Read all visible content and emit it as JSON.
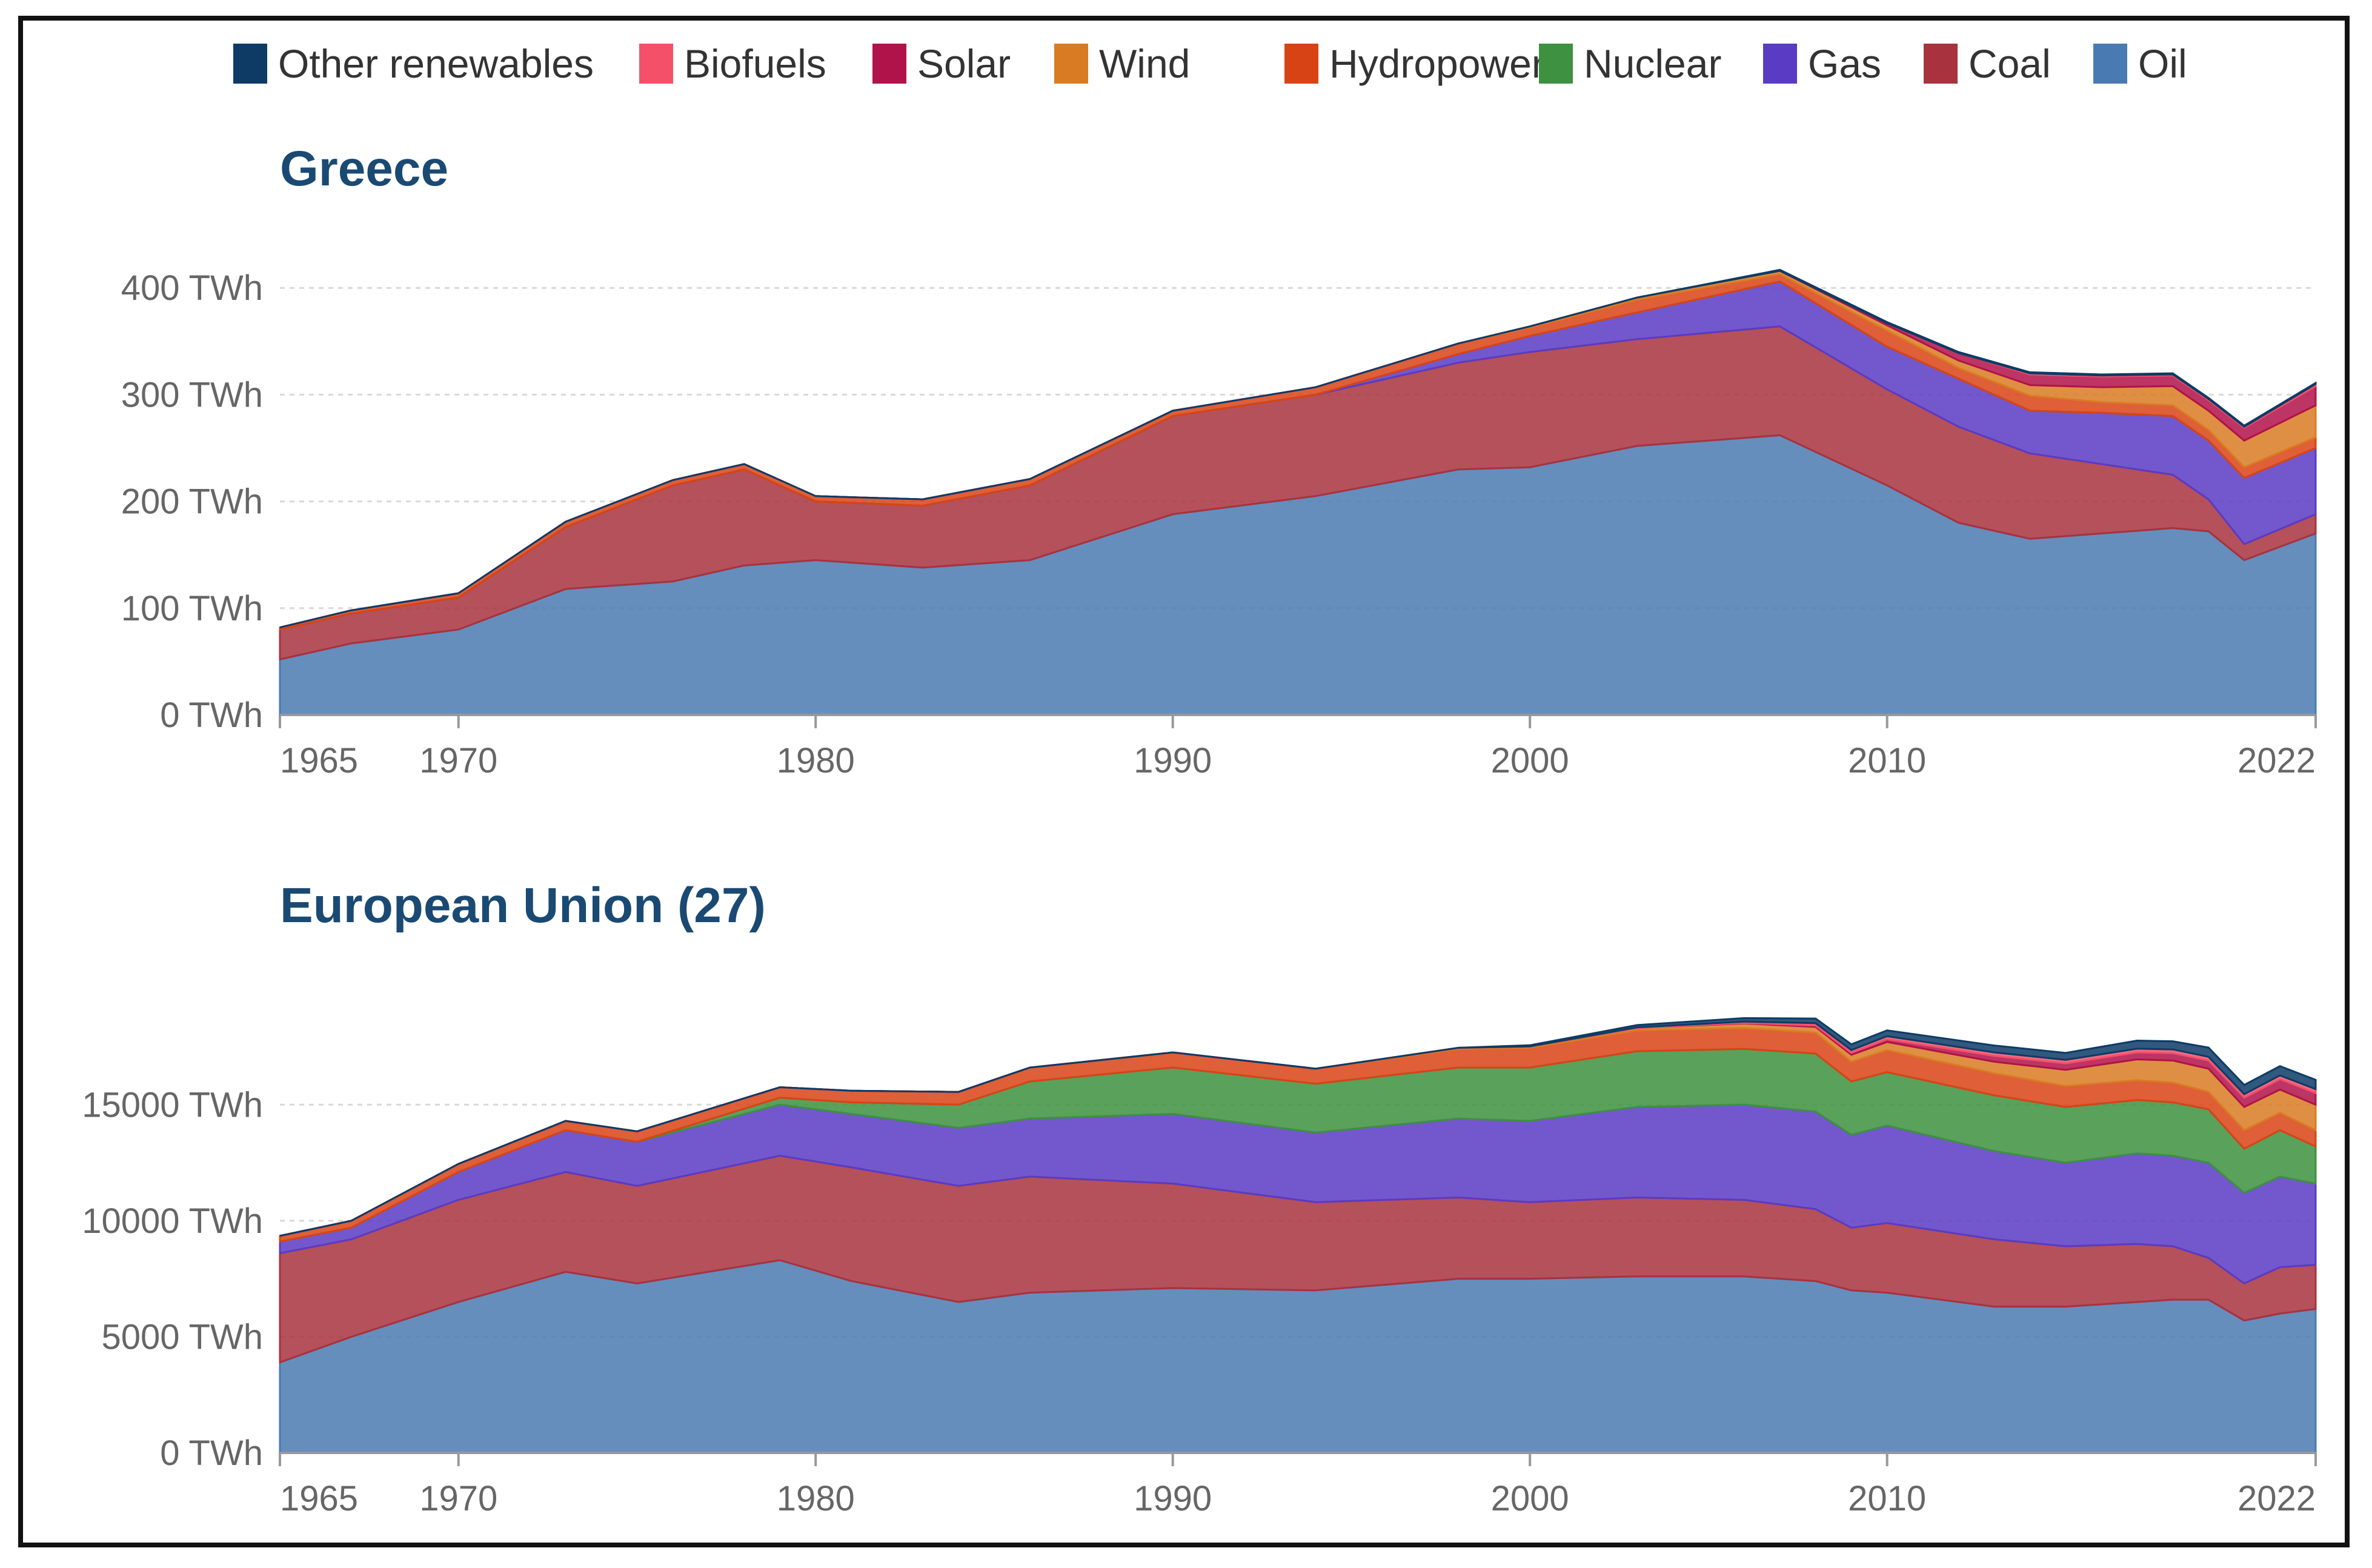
{
  "chart_data": [
    {
      "type": "area",
      "stacked": true,
      "title": "Greece",
      "ylabel": "",
      "xlabel": "",
      "ylim": [
        0,
        420
      ],
      "y_ticks": [
        "0 TWh",
        "100 TWh",
        "200 TWh",
        "300 TWh",
        "400 TWh"
      ],
      "y_tick_values": [
        0,
        100,
        200,
        300,
        400
      ],
      "x_ticks": [
        "1965",
        "1970",
        "1980",
        "1990",
        "2000",
        "2010",
        "2022"
      ],
      "x_tick_values": [
        1965,
        1970,
        1980,
        1990,
        2000,
        2010,
        2022
      ],
      "x": [
        1965,
        1967,
        1970,
        1973,
        1976,
        1978,
        1980,
        1983,
        1986,
        1990,
        1994,
        1998,
        2000,
        2003,
        2007,
        2010,
        2012,
        2014,
        2016,
        2018,
        2019,
        2020,
        2022
      ],
      "series": [
        {
          "name": "Oil",
          "values": [
            52,
            67,
            80,
            118,
            125,
            140,
            145,
            138,
            145,
            188,
            205,
            230,
            232,
            252,
            262,
            215,
            180,
            165,
            170,
            175,
            172,
            145,
            170
          ]
        },
        {
          "name": "Coal",
          "values": [
            28,
            28,
            30,
            58,
            90,
            90,
            55,
            58,
            70,
            92,
            95,
            100,
            108,
            100,
            102,
            90,
            90,
            80,
            65,
            50,
            30,
            15,
            18
          ]
        },
        {
          "name": "Gas",
          "values": [
            0,
            0,
            0,
            0,
            0,
            0,
            0,
            0,
            0,
            0,
            0,
            8,
            15,
            25,
            42,
            40,
            45,
            40,
            48,
            55,
            55,
            62,
            62
          ]
        },
        {
          "name": "Nuclear",
          "values": [
            0,
            0,
            0,
            0,
            0,
            0,
            0,
            0,
            0,
            0,
            0,
            0,
            0,
            0,
            0,
            0,
            0,
            0,
            0,
            0,
            0,
            0,
            0
          ]
        },
        {
          "name": "Hydropower",
          "values": [
            2,
            3,
            4,
            5,
            5,
            5,
            5,
            6,
            6,
            5,
            7,
            10,
            8,
            12,
            7,
            15,
            10,
            14,
            10,
            10,
            10,
            10,
            10
          ]
        },
        {
          "name": "Wind",
          "values": [
            0,
            0,
            0,
            0,
            0,
            0,
            0,
            0,
            0,
            0,
            0,
            0,
            1,
            2,
            3,
            5,
            7,
            10,
            14,
            18,
            18,
            25,
            30
          ]
        },
        {
          "name": "Solar",
          "values": [
            0,
            0,
            0,
            0,
            0,
            0,
            0,
            0,
            0,
            0,
            0,
            0,
            0,
            0,
            0,
            2,
            7,
            10,
            10,
            10,
            10,
            12,
            18
          ]
        },
        {
          "name": "Biofuels",
          "values": [
            0,
            0,
            0,
            0,
            0,
            0,
            0,
            0,
            0,
            0,
            0,
            0,
            0,
            0,
            0,
            0,
            0,
            1,
            1,
            1,
            1,
            1,
            2
          ]
        },
        {
          "name": "Other renewables",
          "values": [
            0,
            0,
            0,
            0,
            0,
            0,
            0,
            0,
            0,
            0,
            0,
            0,
            0,
            0,
            1,
            1,
            1,
            1,
            1,
            1,
            1,
            1,
            1
          ]
        }
      ]
    },
    {
      "type": "area",
      "stacked": true,
      "title": "European Union (27)",
      "ylabel": "",
      "xlabel": "",
      "ylim": [
        0,
        19000
      ],
      "y_ticks": [
        "0 TWh",
        "5000 TWh",
        "10000 TWh",
        "15000 TWh"
      ],
      "y_tick_values": [
        0,
        5000,
        10000,
        15000
      ],
      "x_ticks": [
        "1965",
        "1970",
        "1980",
        "1990",
        "2000",
        "2010",
        "2022"
      ],
      "x_tick_values": [
        1965,
        1970,
        1980,
        1990,
        2000,
        2010,
        2022
      ],
      "x": [
        1965,
        1967,
        1970,
        1973,
        1975,
        1979,
        1981,
        1984,
        1986,
        1990,
        1994,
        1998,
        2000,
        2003,
        2006,
        2008,
        2009,
        2010,
        2013,
        2015,
        2017,
        2018,
        2019,
        2020,
        2021,
        2022
      ],
      "series": [
        {
          "name": "Oil",
          "values": [
            3900,
            5000,
            6500,
            7800,
            7300,
            8300,
            7400,
            6500,
            6900,
            7100,
            7000,
            7500,
            7500,
            7600,
            7600,
            7400,
            7000,
            6900,
            6300,
            6300,
            6500,
            6600,
            6600,
            5700,
            6000,
            6200
          ]
        },
        {
          "name": "Coal",
          "values": [
            4700,
            4200,
            4400,
            4300,
            4200,
            4500,
            4900,
            5000,
            5000,
            4500,
            3800,
            3500,
            3300,
            3400,
            3300,
            3100,
            2700,
            3000,
            2900,
            2600,
            2500,
            2300,
            1800,
            1600,
            2000,
            1900
          ]
        },
        {
          "name": "Gas",
          "values": [
            500,
            500,
            1200,
            1800,
            1900,
            2200,
            2300,
            2500,
            2500,
            3000,
            3000,
            3400,
            3500,
            3900,
            4100,
            4200,
            4000,
            4200,
            3800,
            3600,
            3900,
            3900,
            4100,
            3900,
            3900,
            3500
          ]
        },
        {
          "name": "Nuclear",
          "values": [
            0,
            0,
            0,
            0,
            0,
            300,
            500,
            1000,
            1600,
            2000,
            2100,
            2200,
            2300,
            2400,
            2400,
            2500,
            2300,
            2300,
            2400,
            2400,
            2300,
            2300,
            2300,
            1900,
            2000,
            1600
          ]
        },
        {
          "name": "Hydropower",
          "values": [
            250,
            300,
            350,
            400,
            450,
            450,
            500,
            550,
            600,
            650,
            650,
            800,
            850,
            900,
            900,
            900,
            850,
            950,
            950,
            900,
            850,
            850,
            750,
            800,
            750,
            700
          ]
        },
        {
          "name": "Wind",
          "values": [
            0,
            0,
            0,
            0,
            0,
            0,
            0,
            0,
            0,
            0,
            0,
            50,
            60,
            100,
            200,
            250,
            300,
            350,
            500,
            700,
            900,
            950,
            1000,
            1000,
            1000,
            1100
          ]
        },
        {
          "name": "Solar",
          "values": [
            0,
            0,
            0,
            0,
            0,
            0,
            0,
            0,
            0,
            0,
            0,
            0,
            0,
            0,
            20,
            60,
            80,
            120,
            250,
            280,
            300,
            320,
            350,
            400,
            450,
            500
          ]
        },
        {
          "name": "Biofuels",
          "values": [
            0,
            0,
            0,
            0,
            0,
            0,
            0,
            0,
            0,
            0,
            0,
            0,
            0,
            30,
            60,
            100,
            120,
            130,
            150,
            150,
            160,
            160,
            160,
            150,
            160,
            170
          ]
        },
        {
          "name": "Other renewables",
          "values": [
            0,
            0,
            0,
            0,
            0,
            0,
            0,
            0,
            0,
            0,
            0,
            0,
            50,
            100,
            150,
            200,
            250,
            250,
            300,
            300,
            350,
            350,
            400,
            400,
            400,
            400
          ]
        }
      ]
    }
  ],
  "legend": [
    {
      "name": "Other renewables",
      "color": "#0d3b66"
    },
    {
      "name": "Biofuels",
      "color": "#f4506a"
    },
    {
      "name": "Solar",
      "color": "#b0124a"
    },
    {
      "name": "Wind",
      "color": "#d97b22"
    },
    {
      "name": "Hydropower",
      "color": "#d84315"
    },
    {
      "name": "Nuclear",
      "color": "#3d9140"
    },
    {
      "name": "Gas",
      "color": "#5a3bc4"
    },
    {
      "name": "Coal",
      "color": "#a8323e"
    },
    {
      "name": "Oil",
      "color": "#4a7ab2"
    }
  ],
  "series_colors": {
    "Other renewables": "#0d3b66",
    "Biofuels": "#f4506a",
    "Solar": "#b0124a",
    "Wind": "#d97b22",
    "Hydropower": "#d84315",
    "Nuclear": "#3d9140",
    "Gas": "#5a3bc4",
    "Coal": "#a8323e",
    "Oil": "#4a7ab2"
  }
}
